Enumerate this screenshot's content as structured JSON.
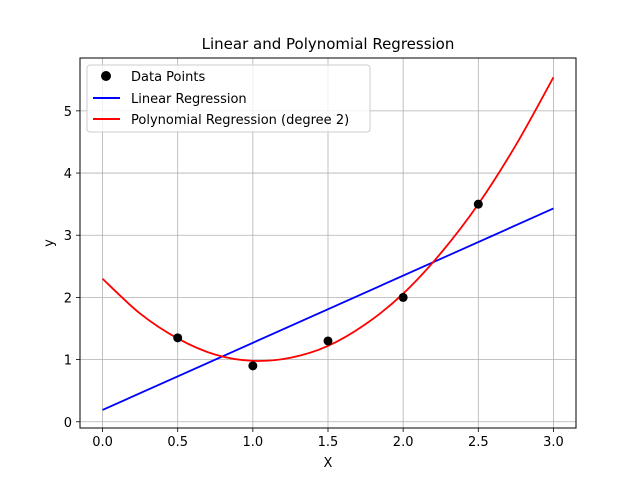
{
  "chart_data": {
    "type": "line",
    "title": "Linear and Polynomial Regression",
    "xlabel": "X",
    "ylabel": "y",
    "xlim": [
      -0.15,
      3.15
    ],
    "ylim": [
      -0.1,
      5.85
    ],
    "xticks": [
      "0.0",
      "0.5",
      "1.0",
      "1.5",
      "2.0",
      "2.5",
      "3.0"
    ],
    "xtick_values": [
      0,
      0.5,
      1.0,
      1.5,
      2.0,
      2.5,
      3.0
    ],
    "yticks": [
      "0",
      "1",
      "2",
      "3",
      "4",
      "5"
    ],
    "ytick_values": [
      0,
      1,
      2,
      3,
      4,
      5
    ],
    "grid": true,
    "legend_position": "top-left",
    "scatter": {
      "name": "Data Points",
      "color": "#000000",
      "x": [
        0.5,
        1.0,
        1.5,
        2.0,
        2.5
      ],
      "y": [
        1.35,
        0.9,
        1.3,
        2.0,
        3.5
      ]
    },
    "series": [
      {
        "name": "Linear Regression",
        "color": "#0000ff",
        "x": [
          0.0,
          3.0
        ],
        "y": [
          0.19,
          3.43
        ]
      },
      {
        "name": "Polynomial Regression (degree 2)",
        "color": "#ff0000",
        "x": [
          0.0,
          0.25,
          0.5,
          0.75,
          1.0,
          1.25,
          1.5,
          1.75,
          2.0,
          2.25,
          2.5,
          2.75,
          3.0
        ],
        "y": [
          2.3,
          1.74,
          1.34,
          1.08,
          0.98,
          1.03,
          1.22,
          1.57,
          2.06,
          2.71,
          3.5,
          4.45,
          5.54
        ]
      }
    ]
  }
}
